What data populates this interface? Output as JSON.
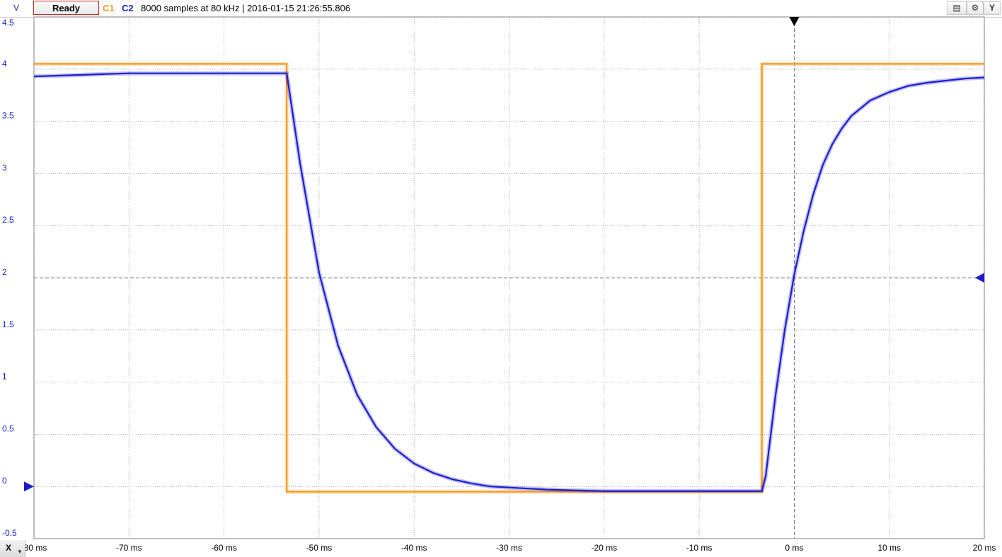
{
  "toolbar": {
    "unit_label": "V",
    "ready_label": "Ready",
    "channel1_label": "C1",
    "channel2_label": "C2",
    "status": "8000 samples at 80 kHz | 2016-01-15 21:26:55.806",
    "y_axis_button": "Y",
    "x_axis_button": "X",
    "icons": [
      "display-settings-icon",
      "gear-icon",
      "dropdown-arrow-icon"
    ]
  },
  "colors": {
    "channel1": "#f39a1f",
    "channel2": "#1d1dcc",
    "grid": "#9a9a9a",
    "zero_line": "#555555"
  },
  "chart_data": {
    "type": "line",
    "title": "",
    "xlabel": "",
    "ylabel": "V",
    "x_unit": "ms",
    "xlim": [
      -80,
      20
    ],
    "ylim": [
      -0.5,
      4.5
    ],
    "x_ticks": [
      -80,
      -70,
      -60,
      -50,
      -40,
      -30,
      -20,
      -10,
      0,
      10,
      20
    ],
    "x_tick_labels": [
      "-80 ms",
      "-70 ms",
      "-60 ms",
      "-50 ms",
      "-40 ms",
      "-30 ms",
      "-20 ms",
      "-10 ms",
      "0 ms",
      "10 ms",
      "20 ms"
    ],
    "y_ticks": [
      -0.5,
      0,
      0.5,
      1,
      1.5,
      2,
      2.5,
      3,
      3.5,
      4,
      4.5
    ],
    "y_tick_labels": [
      "-0.5",
      "0",
      "0.5",
      "1",
      "1.5",
      "2",
      "2.5",
      "3",
      "3.5",
      "4",
      "4.5"
    ],
    "grid": true,
    "trigger_time": 0,
    "trigger_level": 2,
    "series": [
      {
        "name": "C1",
        "x": [
          -80,
          -53.4,
          -53.4,
          -3.4,
          -3.4,
          20
        ],
        "y": [
          4.05,
          4.05,
          -0.05,
          -0.05,
          4.05,
          4.05
        ]
      },
      {
        "name": "C2",
        "x": [
          -80,
          -70,
          -60,
          -53.4,
          -52,
          -50,
          -48,
          -46,
          -44,
          -42,
          -40,
          -38,
          -36,
          -34,
          -32,
          -30,
          -28,
          -26,
          -24,
          -22,
          -20,
          -15,
          -10,
          -5,
          -3.4,
          -3,
          -2,
          -1,
          0,
          1,
          2,
          3,
          4,
          5,
          6,
          8,
          10,
          12,
          14,
          16,
          18,
          20
        ],
        "y": [
          3.93,
          3.96,
          3.96,
          3.96,
          3.1,
          2.05,
          1.35,
          0.88,
          0.57,
          0.36,
          0.22,
          0.13,
          0.07,
          0.03,
          0.0,
          -0.01,
          -0.02,
          -0.03,
          -0.035,
          -0.04,
          -0.045,
          -0.045,
          -0.045,
          -0.045,
          -0.045,
          0.1,
          0.85,
          1.5,
          2.03,
          2.45,
          2.8,
          3.08,
          3.28,
          3.43,
          3.55,
          3.7,
          3.78,
          3.84,
          3.87,
          3.89,
          3.91,
          3.92
        ]
      }
    ]
  }
}
